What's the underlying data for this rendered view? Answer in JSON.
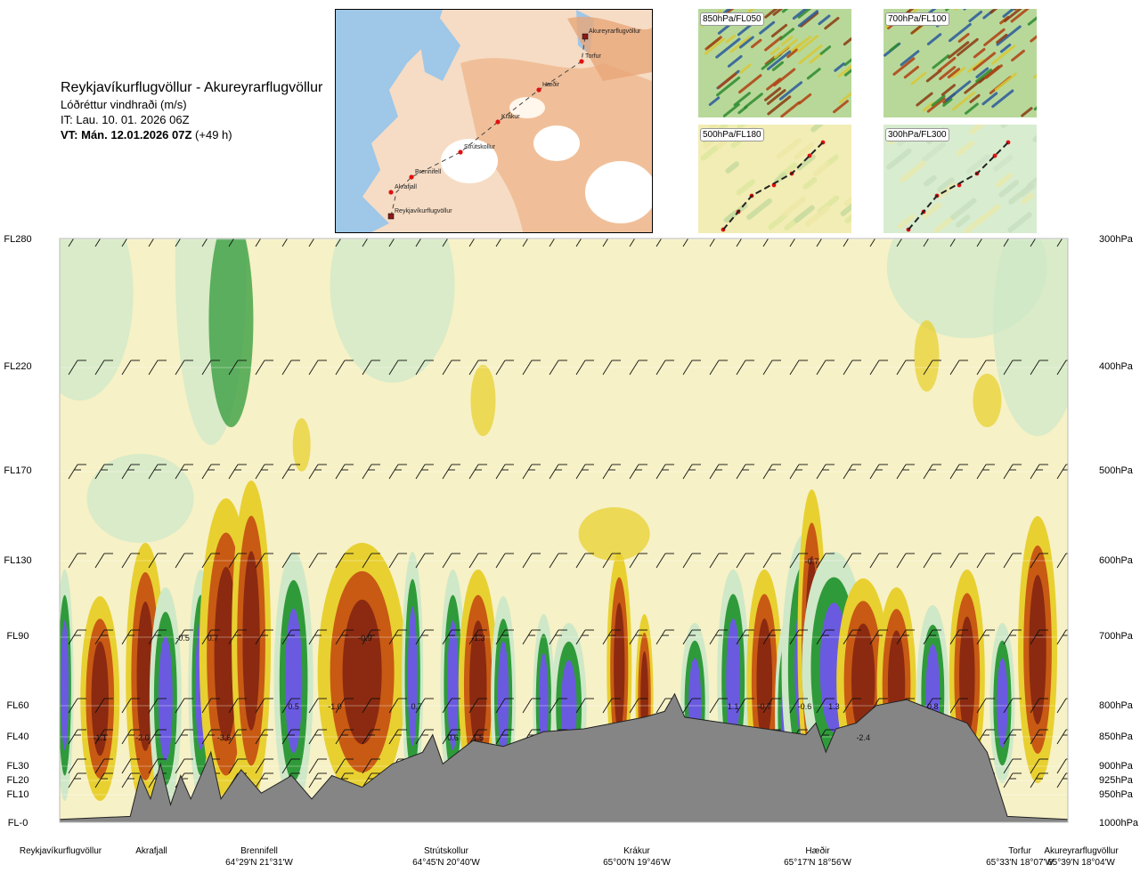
{
  "header": {
    "title": "Reykjavíkurflugvöllur - Akureyrarflugvöllur",
    "subtitle": "Lóðréttur vindhraði (m/s)",
    "issue": "IT: Lau. 10. 01. 2026 06Z",
    "valid_bold": "VT: Mán. 12.01.2026 07Z",
    "valid_extra": "(+49 h)"
  },
  "map": {
    "places": [
      "Akureyrarflugvöllur",
      "Torfur",
      "Hæðir",
      "Krákur",
      "Strútskollur",
      "Brennifell",
      "Akrafjall",
      "Reykjavíkurflugvöllur"
    ]
  },
  "mini_maps": [
    {
      "label": "850hPa/FL050"
    },
    {
      "label": "700hPa/FL100"
    },
    {
      "label": "500hPa/FL180"
    },
    {
      "label": "300hPa/FL300"
    }
  ],
  "colors": {
    "strong_up": "#8b2a10",
    "up": "#c85a14",
    "weak_up": "#e8d030",
    "neutral": "#f5f0c0",
    "weak_down": "#cfe8c8",
    "down": "#2f9a3a",
    "strong_down": "#6a5ae0",
    "terrain": "#808080"
  },
  "chart_data": {
    "type": "heatmap",
    "title": "Lóðréttur vindhraði (m/s)",
    "y_left_ticks": [
      "FL280",
      "FL220",
      "FL170",
      "FL130",
      "FL90",
      "FL60",
      "FL40",
      "FL30",
      "FL20",
      "FL10",
      "FL-0"
    ],
    "y_right_ticks": [
      "300hPa",
      "400hPa",
      "500hPa",
      "600hPa",
      "700hPa",
      "800hPa",
      "850hPa",
      "900hPa",
      "925hPa",
      "950hPa",
      "1000hPa"
    ],
    "locations": [
      {
        "name": "Reykjavíkurflugvöllur",
        "coord": ""
      },
      {
        "name": "Akrafjall",
        "coord": ""
      },
      {
        "name": "Brennifell",
        "coord": "64°29'N 21°31'W"
      },
      {
        "name": "Strútskollur",
        "coord": "64°45'N 20°40'W"
      },
      {
        "name": "Krákur",
        "coord": "65°00'N 19°46'W"
      },
      {
        "name": "Hæðir",
        "coord": "65°17'N 18°56'W"
      },
      {
        "name": "Torfur",
        "coord": "65°33'N 18°07'W"
      },
      {
        "name": "Akureyrarflugvöllur",
        "coord": "65°39'N 18°04'W"
      }
    ],
    "value_labels": [
      {
        "value": "-1.1",
        "x": 0.04,
        "level": "FL40"
      },
      {
        "value": "-2.0",
        "x": 0.082,
        "level": "FL40"
      },
      {
        "value": "-0.5",
        "x": 0.122,
        "level": "FL90"
      },
      {
        "value": "0.7",
        "x": 0.152,
        "level": "FL90"
      },
      {
        "value": "-3.6",
        "x": 0.163,
        "level": "FL40"
      },
      {
        "value": "0.5",
        "x": 0.232,
        "level": "FL60"
      },
      {
        "value": "-0.9",
        "x": 0.303,
        "level": "FL90"
      },
      {
        "value": "-1.0",
        "x": 0.273,
        "level": "FL60"
      },
      {
        "value": "0.7",
        "x": 0.354,
        "level": "FL60"
      },
      {
        "value": "0.6",
        "x": 0.39,
        "level": "FL40"
      },
      {
        "value": "1.5",
        "x": 0.415,
        "level": "FL40"
      },
      {
        "value": "-1.3",
        "x": 0.415,
        "level": "FL90"
      },
      {
        "value": "1.1",
        "x": 0.668,
        "level": "FL60"
      },
      {
        "value": "-0.7",
        "x": 0.699,
        "level": "FL60"
      },
      {
        "value": "-0.6",
        "x": 0.739,
        "level": "FL60"
      },
      {
        "value": "-0.7",
        "x": 0.746,
        "level": "FL130"
      },
      {
        "value": "1.3",
        "x": 0.768,
        "level": "FL60"
      },
      {
        "value": "-2.4",
        "x": 0.797,
        "level": "FL40"
      },
      {
        "value": "0.8",
        "x": 0.866,
        "level": "FL60"
      }
    ]
  }
}
